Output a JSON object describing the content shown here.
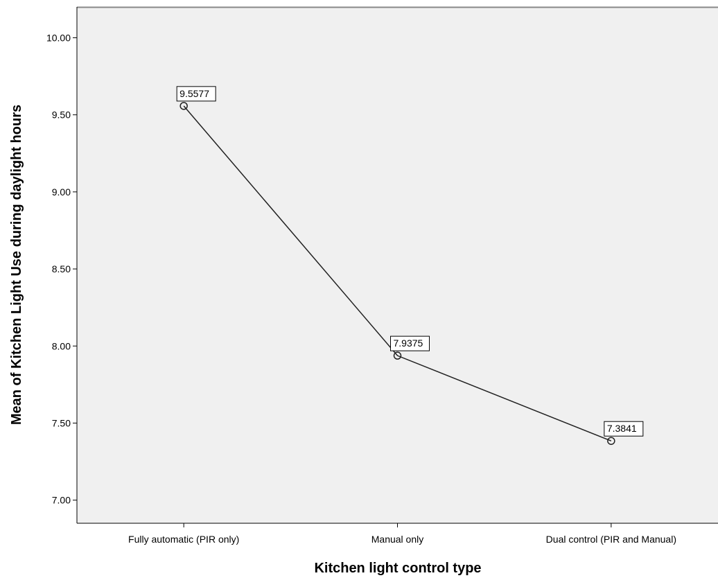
{
  "chart_data": {
    "type": "line",
    "title": "",
    "xlabel": "Kitchen light control type",
    "ylabel": "Mean of Kitchen Light Use during daylight hours",
    "categories": [
      "Fully automatic (PIR only)",
      "Manual only",
      "Dual control (PIR and Manual)"
    ],
    "series": [
      {
        "values": [
          9.5577,
          7.9375,
          7.3841
        ],
        "data_labels": [
          "9.5577",
          "7.9375",
          "7.3841"
        ]
      }
    ],
    "ylim": [
      6.85,
      10.2
    ],
    "yticks": [
      7.0,
      7.5,
      8.0,
      8.5,
      9.0,
      9.5,
      10.0
    ],
    "ytick_labels": [
      "7.00",
      "7.50",
      "8.00",
      "8.50",
      "9.00",
      "9.50",
      "10.00"
    ],
    "grid": false,
    "marker": "circle-open",
    "colors": {
      "plot_background": "#f0f0f0",
      "line": "#222222",
      "axis": "#000000",
      "frame": "#888888"
    }
  }
}
